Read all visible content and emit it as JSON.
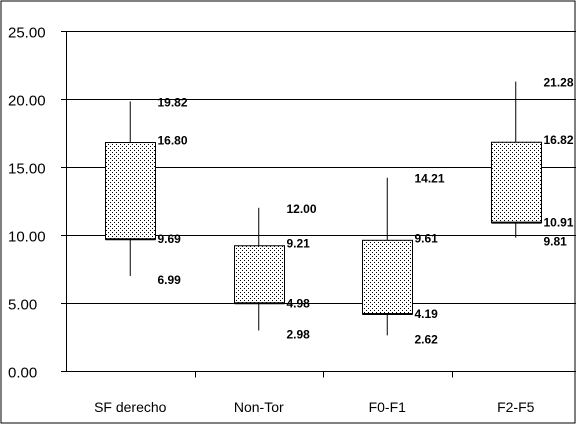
{
  "chart_data": {
    "type": "box",
    "ylim": [
      0,
      25
    ],
    "yticks": [
      "0.00",
      "5.00",
      "10.00",
      "15.00",
      "20.00",
      "25.00"
    ],
    "ytick_values": [
      0,
      5,
      10,
      15,
      20,
      25
    ],
    "gridlines": "horizontal",
    "box_fill": "stippled",
    "categories": [
      "SF derecho",
      "Non-Tor",
      "F0-F1",
      "F2-F5"
    ],
    "boxes": [
      {
        "category": "SF derecho",
        "max": 19.82,
        "q3": 16.8,
        "q1": 9.69,
        "min": 6.99,
        "labels": {
          "max": "19.82",
          "q3": "16.80",
          "q1": "9.69",
          "min": "6.99"
        }
      },
      {
        "category": "Non-Tor",
        "max": 12.0,
        "q3": 9.21,
        "q1": 4.98,
        "min": 2.98,
        "labels": {
          "max": "12.00",
          "q3": "9.21",
          "q1": "4.98",
          "min": "2.98"
        }
      },
      {
        "category": "F0-F1",
        "max": 14.21,
        "q3": 9.61,
        "q1": 4.19,
        "min": 2.62,
        "labels": {
          "max": "14.21",
          "q3": "9.61",
          "q1": "4.19",
          "min": "2.62"
        }
      },
      {
        "category": "F2-F5",
        "max": 21.28,
        "q3": 16.82,
        "q1": 10.91,
        "min": 9.81,
        "labels": {
          "max": "21.28",
          "q3": "16.82",
          "q1": "10.91",
          "min": "9.81"
        }
      }
    ]
  }
}
